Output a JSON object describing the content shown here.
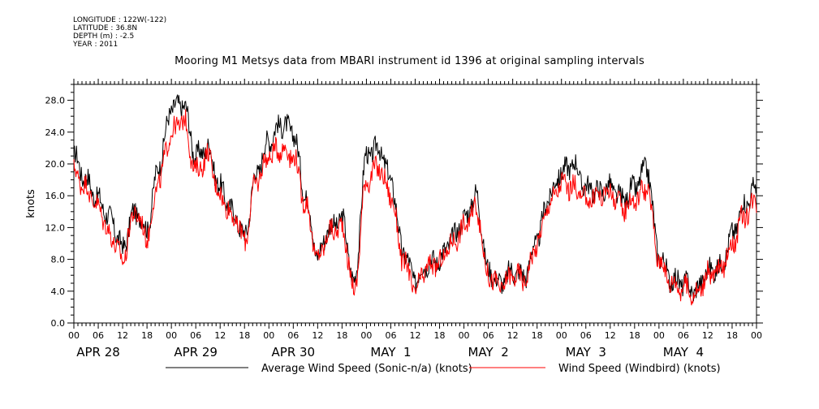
{
  "header": {
    "lines": [
      "LONGITUDE : 122W(-122)",
      "LATITUDE : 36.8N",
      "DEPTH (m) : -2.5",
      "YEAR : 2011"
    ]
  },
  "chart_data": {
    "type": "line",
    "title": "Mooring M1 Metsys data from MBARI instrument id 1396 at original sampling intervals",
    "ylabel": "knots",
    "xlabel": "",
    "ylim": [
      0,
      30
    ],
    "y_ticks": [
      "0.0",
      "4.0",
      "8.0",
      "12.0",
      "16.0",
      "20.0",
      "24.0",
      "28.0"
    ],
    "x_hour_ticks": [
      "00",
      "06",
      "12",
      "18",
      "00",
      "06",
      "12",
      "18",
      "00",
      "06",
      "12",
      "18",
      "00",
      "06",
      "12",
      "18",
      "00",
      "06",
      "12",
      "18",
      "00",
      "06",
      "12",
      "18",
      "00",
      "06",
      "12",
      "18",
      "00"
    ],
    "x_day_labels": [
      "APR 28",
      "APR 29",
      "APR 30",
      "MAY  1",
      "MAY  2",
      "MAY  3",
      "MAY  4"
    ],
    "grid": false,
    "legend_position": "bottom",
    "series": [
      {
        "name": "Average Wind Speed (Sonic-n/a) (knots)",
        "color": "#000000",
        "x_hours": [
          0,
          3,
          6,
          9,
          12,
          15,
          18,
          21,
          24,
          27,
          30,
          33,
          36,
          39,
          42,
          45,
          48,
          51,
          54,
          57,
          60,
          63,
          66,
          69,
          72,
          75,
          78,
          81,
          84,
          87,
          90,
          93,
          96,
          99,
          102,
          105,
          108,
          111,
          114,
          117,
          120,
          123,
          126,
          129,
          132,
          135,
          138,
          141,
          144,
          147,
          150,
          153,
          156,
          159,
          162,
          165,
          168
        ],
        "values": [
          21,
          18,
          15.5,
          13,
          9.5,
          14,
          12,
          20,
          27,
          27.5,
          21,
          22,
          17,
          14,
          11,
          19,
          23,
          25,
          24,
          16,
          8.5,
          12,
          13,
          5,
          21,
          22,
          18,
          9,
          5.5,
          7.5,
          8,
          10.5,
          13,
          16,
          6.5,
          5,
          6.5,
          6,
          10.5,
          16,
          19,
          20,
          17,
          16.5,
          17,
          15.5,
          17,
          19.5,
          8.5,
          5.5,
          5,
          4,
          6.5,
          7,
          11,
          15,
          17
        ]
      },
      {
        "name": "Wind Speed (Windbird) (knots)",
        "color": "#ff0000",
        "x_hours": [
          0,
          3,
          6,
          9,
          12,
          15,
          18,
          21,
          24,
          27,
          30,
          33,
          36,
          39,
          42,
          45,
          48,
          51,
          54,
          57,
          60,
          63,
          66,
          69,
          72,
          75,
          78,
          81,
          84,
          87,
          90,
          93,
          96,
          99,
          102,
          105,
          108,
          111,
          114,
          117,
          120,
          123,
          126,
          129,
          132,
          135,
          138,
          141,
          144,
          147,
          150,
          153,
          156,
          159,
          162,
          165,
          168
        ],
        "values": [
          19,
          17,
          14.5,
          11,
          8,
          14,
          11,
          18,
          24,
          25.5,
          19,
          21,
          16,
          13.5,
          10.5,
          18,
          21,
          22,
          21,
          15,
          8,
          11.5,
          12,
          4,
          18,
          19.5,
          16,
          8,
          4,
          7,
          7.5,
          10,
          12,
          14.5,
          6,
          4.5,
          6,
          5.5,
          10,
          15,
          17.5,
          17,
          15.5,
          16,
          16.5,
          14.5,
          15.5,
          17,
          8,
          5,
          4.5,
          3.5,
          6,
          6.5,
          10,
          13.5,
          15.5
        ]
      }
    ]
  }
}
